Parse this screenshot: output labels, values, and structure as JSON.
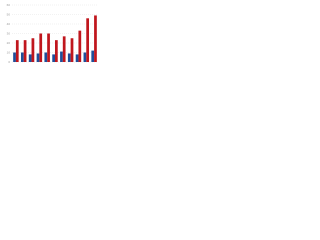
{
  "chart_data": {
    "type": "bar",
    "categories": [
      null,
      null,
      null,
      null,
      null,
      null,
      null,
      null,
      null,
      null,
      null
    ],
    "series": [
      {
        "color": "#1f4e99",
        "values": [
          10,
          10,
          8,
          9,
          10,
          8,
          11,
          9,
          8,
          10,
          12
        ]
      },
      {
        "color": "#c0161d",
        "values": [
          23,
          23,
          25,
          30,
          30,
          23,
          27,
          25,
          33,
          46,
          49
        ]
      }
    ],
    "ylim": [
      0,
      60
    ],
    "yticks": [
      0,
      10,
      20,
      30,
      40,
      50,
      60
    ],
    "grid": true
  }
}
